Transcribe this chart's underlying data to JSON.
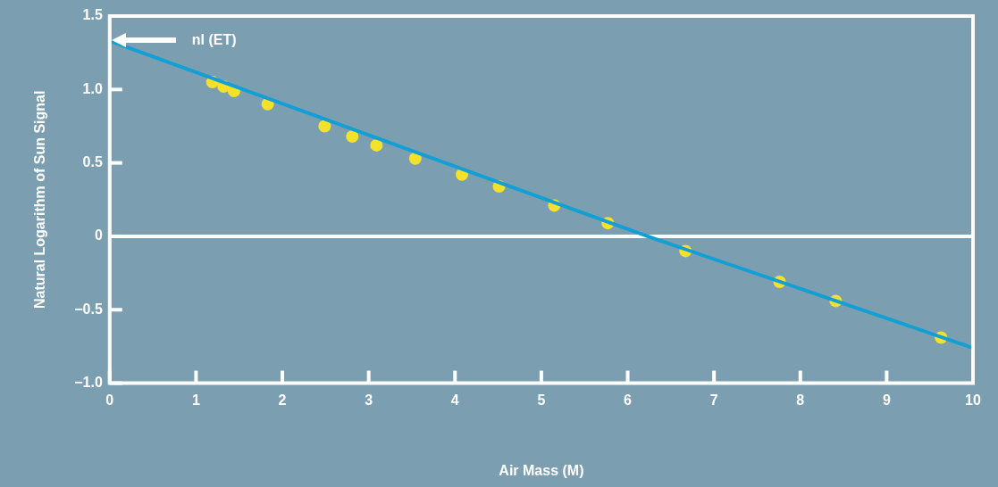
{
  "chart_data": {
    "type": "scatter",
    "xlabel": "Air Mass (M)",
    "ylabel": "Natural Logarithm of Sun Signal",
    "xlim": [
      0,
      10
    ],
    "xticks": [
      0,
      1,
      2,
      3,
      4,
      5,
      6,
      7,
      8,
      9,
      10
    ],
    "ylim": [
      -1.0,
      1.5
    ],
    "yticks": [
      {
        "value": -1,
        "label": "−1.0"
      },
      {
        "value": -0.5,
        "label": "−0.5"
      },
      0,
      {
        "value": 0.5,
        "label": "0.5"
      },
      {
        "value": 1,
        "label": "1.0"
      },
      {
        "value": 1.5,
        "label": "1.5"
      }
    ],
    "grid": false,
    "legend": false,
    "marker": "circle",
    "series": [
      {
        "type": "line",
        "color": "#129fd6",
        "x": [
          0,
          6.23,
          10
        ],
        "values": [
          1.33,
          0,
          -0.76
        ],
        "marker": "none",
        "line_style": "solid"
      },
      {
        "color": "#f5e12a",
        "x": [
          1.19,
          1.32,
          1.44,
          1.83,
          2.49,
          2.81,
          3.09,
          3.54,
          4.08,
          4.51,
          5.15,
          5.77,
          6.67,
          7.76,
          8.41,
          9.63
        ],
        "values": [
          1.05,
          1.02,
          0.99,
          0.9,
          0.75,
          0.68,
          0.62,
          0.53,
          0.42,
          0.34,
          0.21,
          0.09,
          -0.1,
          -0.31,
          -0.44,
          -0.69
        ]
      }
    ],
    "ref_lines": [
      {
        "axis": "y",
        "value": 0,
        "color": "#ffffff"
      }
    ],
    "annotations": [
      "nl (ET)"
    ]
  }
}
